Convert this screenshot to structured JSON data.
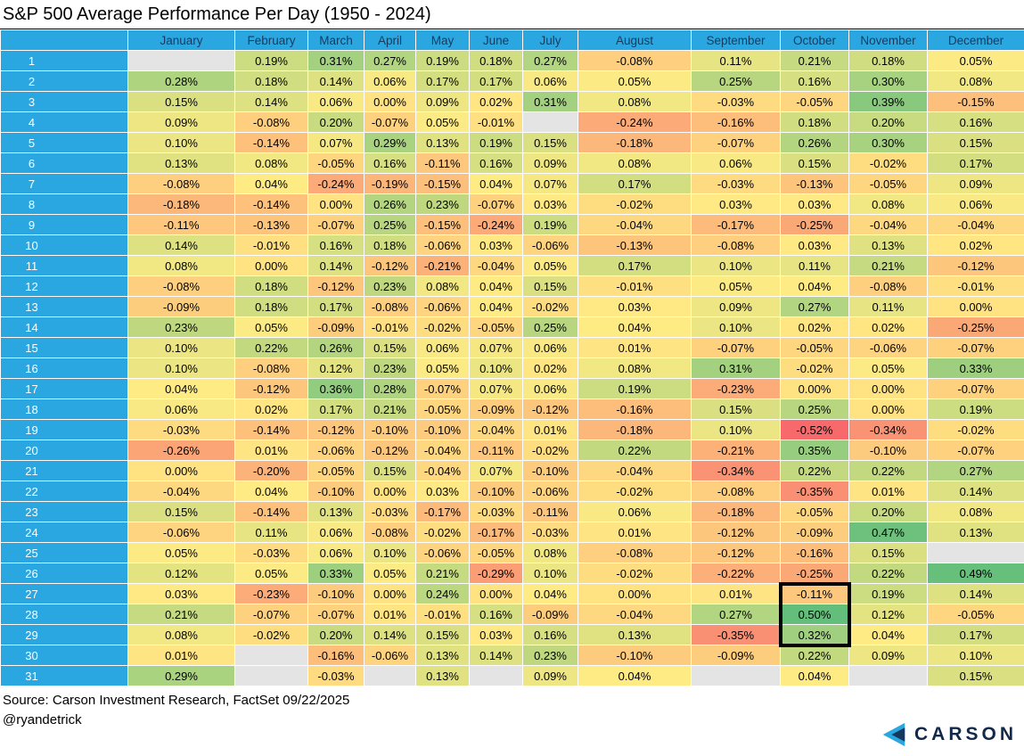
{
  "title": "S&P 500 Average Performance Per Day (1950 - 2024)",
  "footer": {
    "source": "Source: Carson Investment Research, FactSet 09/22/2025",
    "handle": "@ryandetrick"
  },
  "logo": {
    "text": "CARSON"
  },
  "colors": {
    "header_bg": "#2AA7E1",
    "header_text": "#1A3A5C",
    "day_label_text": "#FFFFFF",
    "blank_cell_bg": "#E4E4E4",
    "highlight_border": "#000000",
    "logo_navy": "#13294B",
    "logo_blue": "#2AA7E1",
    "logo_dark_blue": "#15395E"
  },
  "highlight": {
    "month": "October",
    "month_index": 9,
    "day_start": 27,
    "day_end": 29
  },
  "chart_data": {
    "type": "heatmap",
    "title": "S&P 500 Average Performance Per Day (1950 - 2024)",
    "columns": [
      "January",
      "February",
      "March",
      "April",
      "May",
      "June",
      "July",
      "August",
      "September",
      "October",
      "November",
      "December"
    ],
    "days": [
      1,
      2,
      3,
      4,
      5,
      6,
      7,
      8,
      9,
      10,
      11,
      12,
      13,
      14,
      15,
      16,
      17,
      18,
      19,
      20,
      21,
      22,
      23,
      24,
      25,
      26,
      27,
      28,
      29,
      30,
      31
    ],
    "value_unit": "percent",
    "value_format": "0.00%",
    "color_scale": {
      "min_color": "#F8696B",
      "mid_color": "#FFEB84",
      "max_color": "#63BE7B",
      "domain": [
        -0.52,
        0.04,
        0.5
      ]
    },
    "values": [
      [
        null,
        0.19,
        0.31,
        0.27,
        0.19,
        0.18,
        0.27,
        -0.08,
        0.11,
        0.21,
        0.18,
        0.05
      ],
      [
        0.28,
        0.18,
        0.14,
        0.06,
        0.17,
        0.17,
        0.06,
        0.05,
        0.25,
        0.16,
        0.3,
        0.08
      ],
      [
        0.15,
        0.14,
        0.06,
        0.0,
        0.09,
        0.02,
        0.31,
        0.08,
        -0.03,
        -0.05,
        0.39,
        -0.15
      ],
      [
        0.09,
        -0.08,
        0.2,
        -0.07,
        0.05,
        -0.01,
        null,
        -0.24,
        -0.16,
        0.18,
        0.2,
        0.16
      ],
      [
        0.1,
        -0.14,
        0.07,
        0.29,
        0.13,
        0.19,
        0.15,
        -0.18,
        -0.07,
        0.26,
        0.3,
        0.15
      ],
      [
        0.13,
        0.08,
        -0.05,
        0.16,
        -0.11,
        0.16,
        0.09,
        0.08,
        0.06,
        0.15,
        -0.02,
        0.17
      ],
      [
        -0.08,
        0.04,
        -0.24,
        -0.19,
        -0.15,
        0.04,
        0.07,
        0.17,
        -0.03,
        -0.13,
        -0.05,
        0.09
      ],
      [
        -0.18,
        -0.14,
        0.0,
        0.26,
        0.23,
        -0.07,
        0.03,
        -0.02,
        0.03,
        0.03,
        0.08,
        0.06
      ],
      [
        -0.11,
        -0.13,
        -0.07,
        0.25,
        -0.15,
        -0.24,
        0.19,
        -0.04,
        -0.17,
        -0.25,
        -0.04,
        -0.04
      ],
      [
        0.14,
        -0.01,
        0.16,
        0.18,
        -0.06,
        0.03,
        -0.06,
        -0.13,
        -0.08,
        0.03,
        0.13,
        0.02
      ],
      [
        0.08,
        0.0,
        0.14,
        -0.12,
        -0.21,
        -0.04,
        0.05,
        0.17,
        0.1,
        0.11,
        0.21,
        -0.12
      ],
      [
        -0.08,
        0.18,
        -0.12,
        0.23,
        0.08,
        0.04,
        0.15,
        -0.01,
        0.05,
        0.04,
        -0.08,
        -0.01
      ],
      [
        -0.09,
        0.18,
        0.17,
        -0.08,
        -0.06,
        0.04,
        -0.02,
        0.03,
        0.09,
        0.27,
        0.11,
        0.0
      ],
      [
        0.23,
        0.05,
        -0.09,
        -0.01,
        -0.02,
        -0.05,
        0.25,
        0.04,
        0.1,
        0.02,
        0.02,
        -0.25
      ],
      [
        0.1,
        0.22,
        0.26,
        0.15,
        0.06,
        0.07,
        0.06,
        0.01,
        -0.07,
        -0.05,
        -0.06,
        -0.07
      ],
      [
        0.1,
        -0.08,
        0.12,
        0.23,
        0.05,
        0.1,
        0.02,
        0.08,
        0.31,
        -0.02,
        0.05,
        0.33
      ],
      [
        0.04,
        -0.12,
        0.36,
        0.28,
        -0.07,
        0.07,
        0.06,
        0.19,
        -0.23,
        0.0,
        0.0,
        -0.07
      ],
      [
        0.06,
        0.02,
        0.17,
        0.21,
        -0.05,
        -0.09,
        -0.12,
        -0.16,
        0.15,
        0.25,
        0.0,
        0.19
      ],
      [
        -0.03,
        -0.14,
        -0.12,
        -0.1,
        -0.1,
        -0.04,
        0.01,
        -0.18,
        0.1,
        -0.52,
        -0.34,
        -0.02
      ],
      [
        -0.26,
        0.01,
        -0.06,
        -0.12,
        -0.04,
        -0.11,
        -0.02,
        0.22,
        -0.21,
        0.35,
        -0.1,
        -0.07
      ],
      [
        0.0,
        -0.2,
        -0.05,
        0.15,
        -0.04,
        0.07,
        -0.1,
        -0.04,
        -0.34,
        0.22,
        0.22,
        0.27
      ],
      [
        -0.04,
        0.04,
        -0.1,
        0.0,
        0.03,
        -0.1,
        -0.06,
        -0.02,
        -0.08,
        -0.35,
        0.01,
        0.14
      ],
      [
        0.15,
        -0.14,
        0.13,
        -0.03,
        -0.17,
        -0.03,
        -0.11,
        0.06,
        -0.18,
        -0.05,
        0.2,
        0.08
      ],
      [
        -0.06,
        0.11,
        0.06,
        -0.08,
        -0.02,
        -0.17,
        -0.03,
        0.01,
        -0.12,
        -0.09,
        0.47,
        0.13
      ],
      [
        0.05,
        -0.03,
        0.06,
        0.1,
        -0.06,
        -0.05,
        0.08,
        -0.08,
        -0.12,
        -0.16,
        0.15,
        null
      ],
      [
        0.12,
        0.05,
        0.33,
        0.05,
        0.21,
        -0.29,
        0.1,
        -0.02,
        -0.22,
        -0.25,
        0.22,
        0.49
      ],
      [
        0.03,
        -0.23,
        -0.1,
        0.0,
        0.24,
        0.0,
        0.04,
        0.0,
        0.01,
        -0.11,
        0.19,
        0.14
      ],
      [
        0.21,
        -0.07,
        -0.07,
        0.01,
        -0.01,
        0.16,
        -0.09,
        -0.04,
        0.27,
        0.5,
        0.12,
        -0.05
      ],
      [
        0.08,
        -0.02,
        0.2,
        0.14,
        0.15,
        0.03,
        0.16,
        0.13,
        -0.35,
        0.32,
        0.04,
        0.17
      ],
      [
        0.01,
        null,
        -0.16,
        -0.06,
        0.13,
        0.14,
        0.23,
        -0.1,
        -0.09,
        0.22,
        0.09,
        0.1
      ],
      [
        0.29,
        null,
        -0.03,
        null,
        0.13,
        null,
        0.09,
        0.04,
        null,
        0.04,
        null,
        0.15
      ]
    ]
  }
}
